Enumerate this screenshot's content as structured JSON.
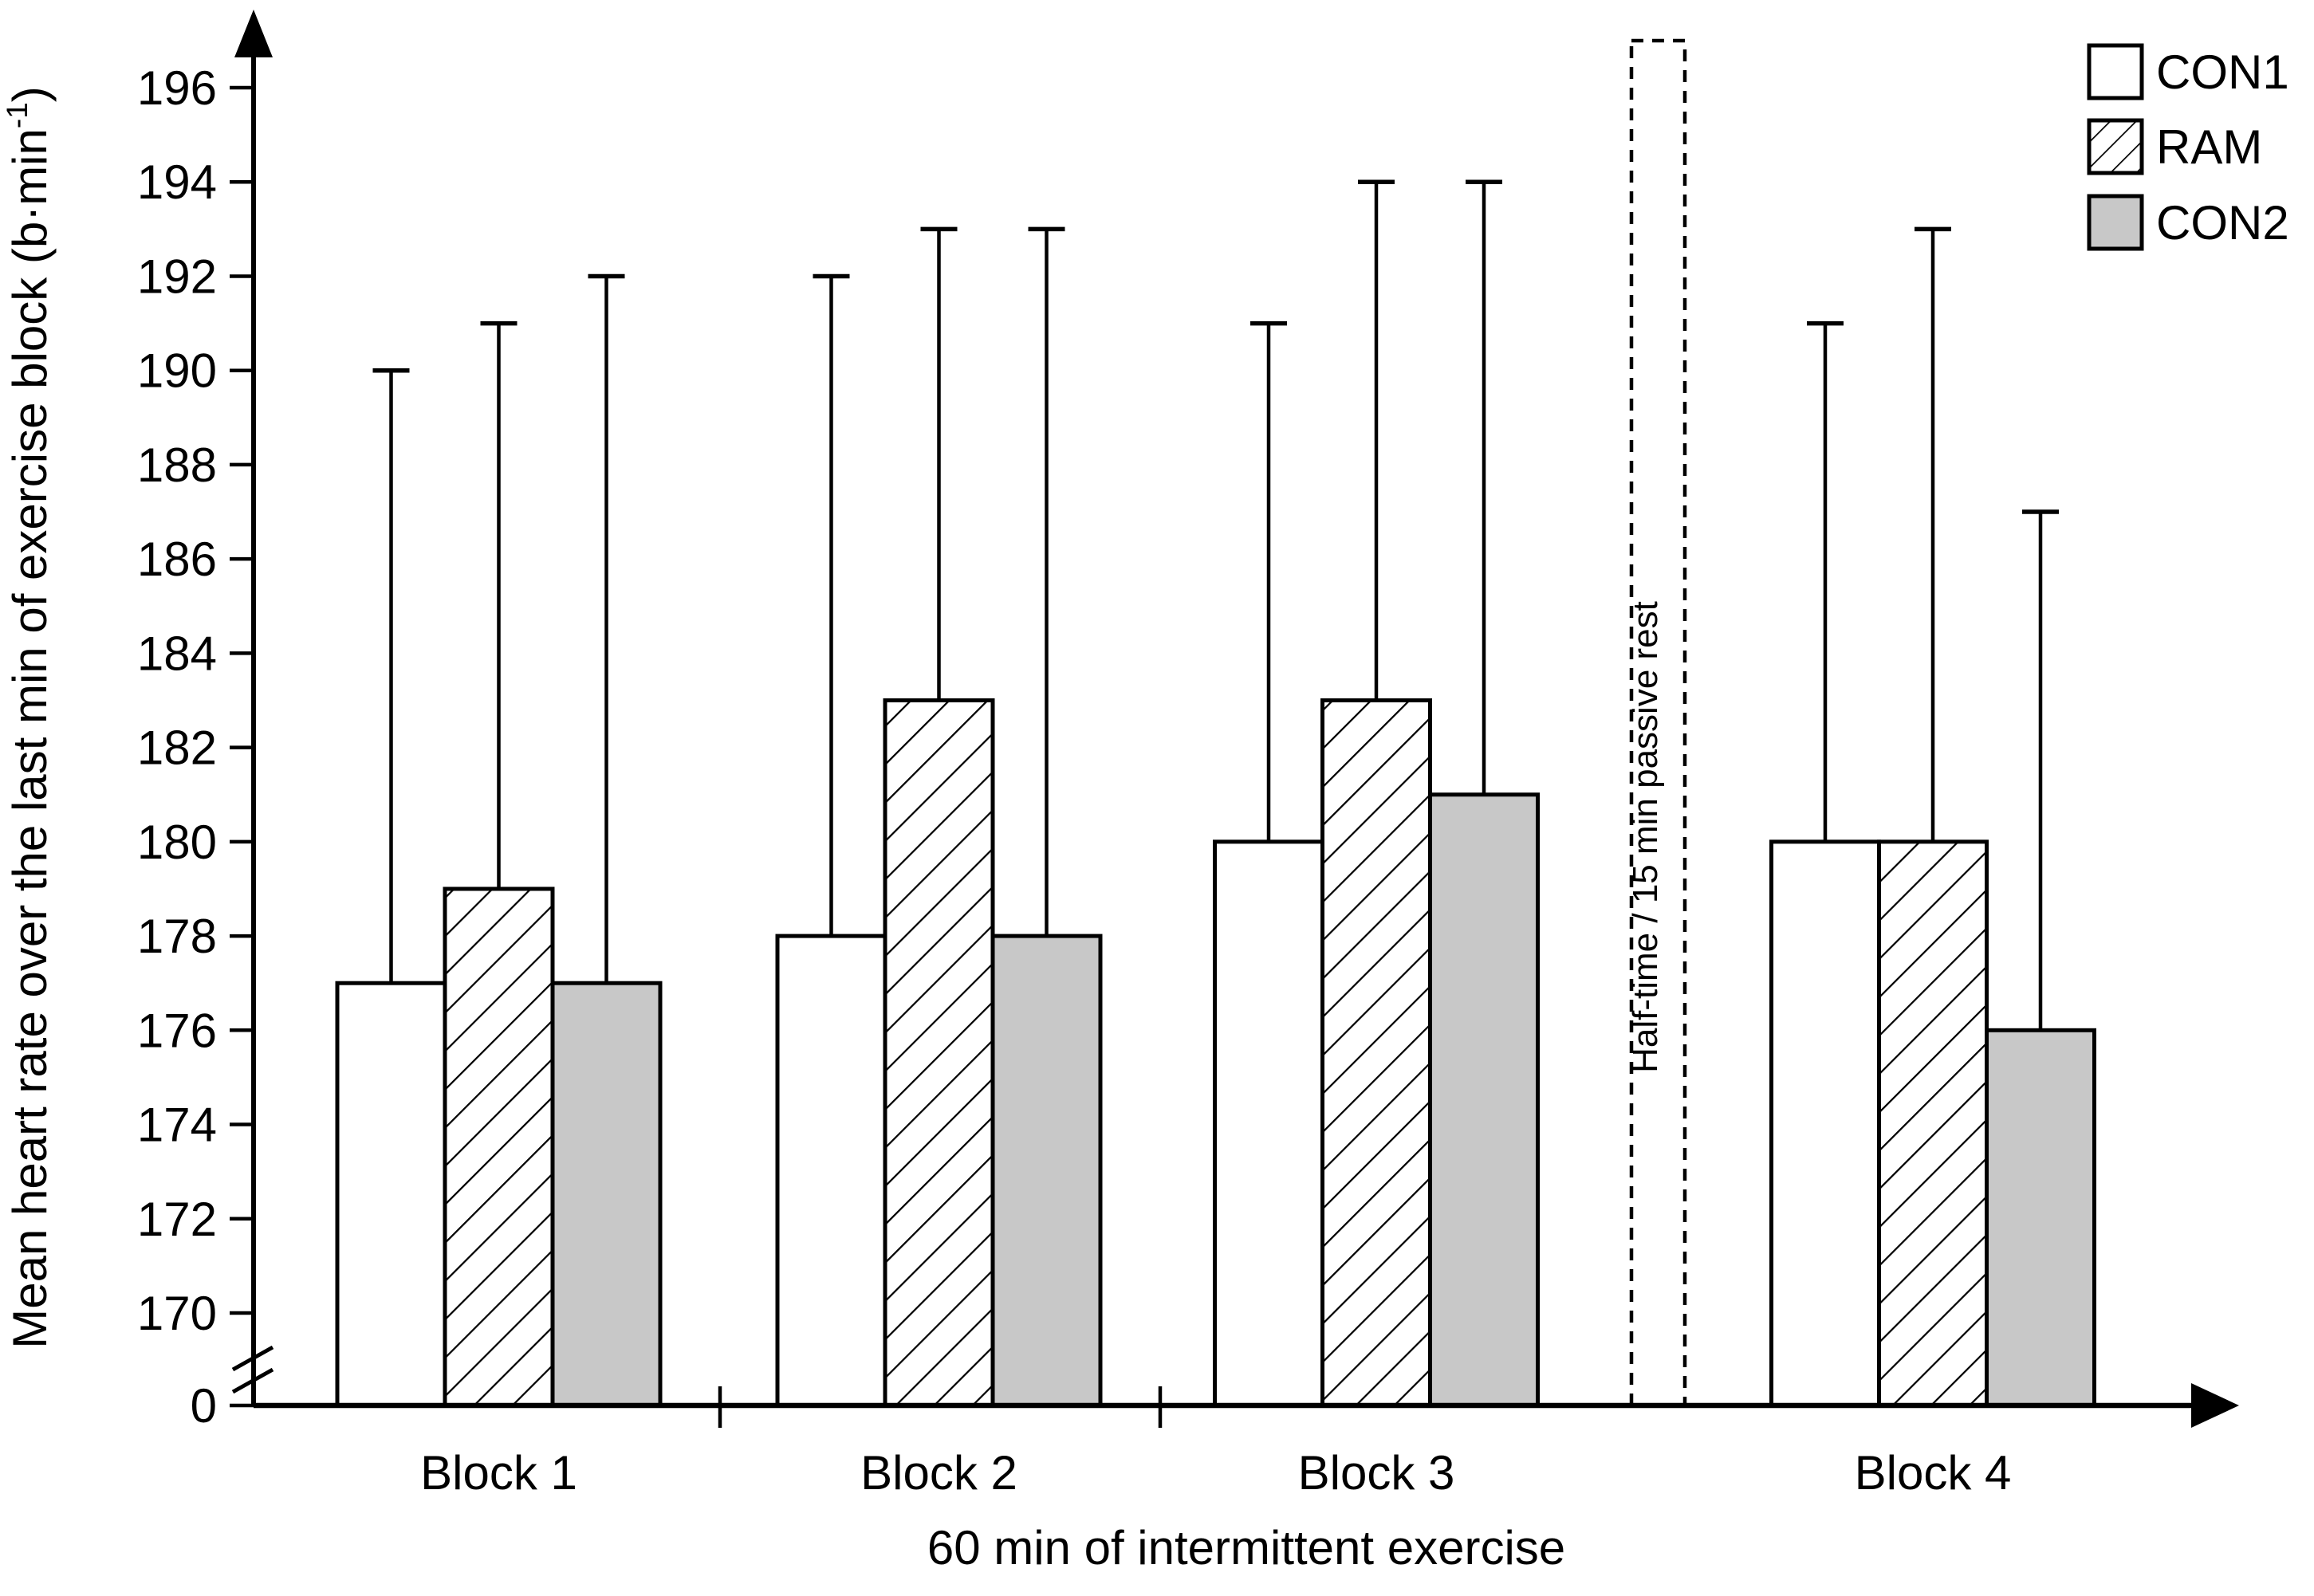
{
  "chart_data": {
    "type": "bar",
    "title": "",
    "categories": [
      "Block 1",
      "Block 2",
      "Block 3",
      "Block 4"
    ],
    "series": [
      {
        "name": "CON1",
        "style": "white",
        "values": [
          177,
          178,
          180,
          180
        ],
        "error_tops": [
          190,
          192,
          191,
          191
        ]
      },
      {
        "name": "RAM",
        "style": "hatch",
        "values": [
          179,
          183,
          183,
          180
        ],
        "error_tops": [
          191,
          193,
          194,
          193
        ]
      },
      {
        "name": "CON2",
        "style": "gray",
        "values": [
          177,
          178,
          181,
          176
        ],
        "error_tops": [
          192,
          193,
          194,
          187
        ]
      }
    ],
    "xlabel": "60 min of intermittent exercise",
    "ylabel_parts": {
      "main": "Mean heart rate over the last min of exercise block (b·min",
      "sup": "-1",
      "close": ")"
    },
    "y_axis": {
      "origin_label": "0",
      "ticks": [
        170,
        172,
        174,
        176,
        178,
        180,
        182,
        184,
        186,
        188,
        190,
        192,
        194,
        196
      ],
      "axis_break": true,
      "range_shown": [
        170,
        197
      ]
    },
    "annotation": "Half-time / 15 min passive rest",
    "legend": {
      "position": "top-right",
      "entries": [
        "CON1",
        "RAM",
        "CON2"
      ]
    },
    "grid": false,
    "colors": {
      "bar_white": "#ffffff",
      "bar_gray": "#c8c8c8",
      "stroke": "#000000",
      "background": "#ffffff"
    }
  }
}
